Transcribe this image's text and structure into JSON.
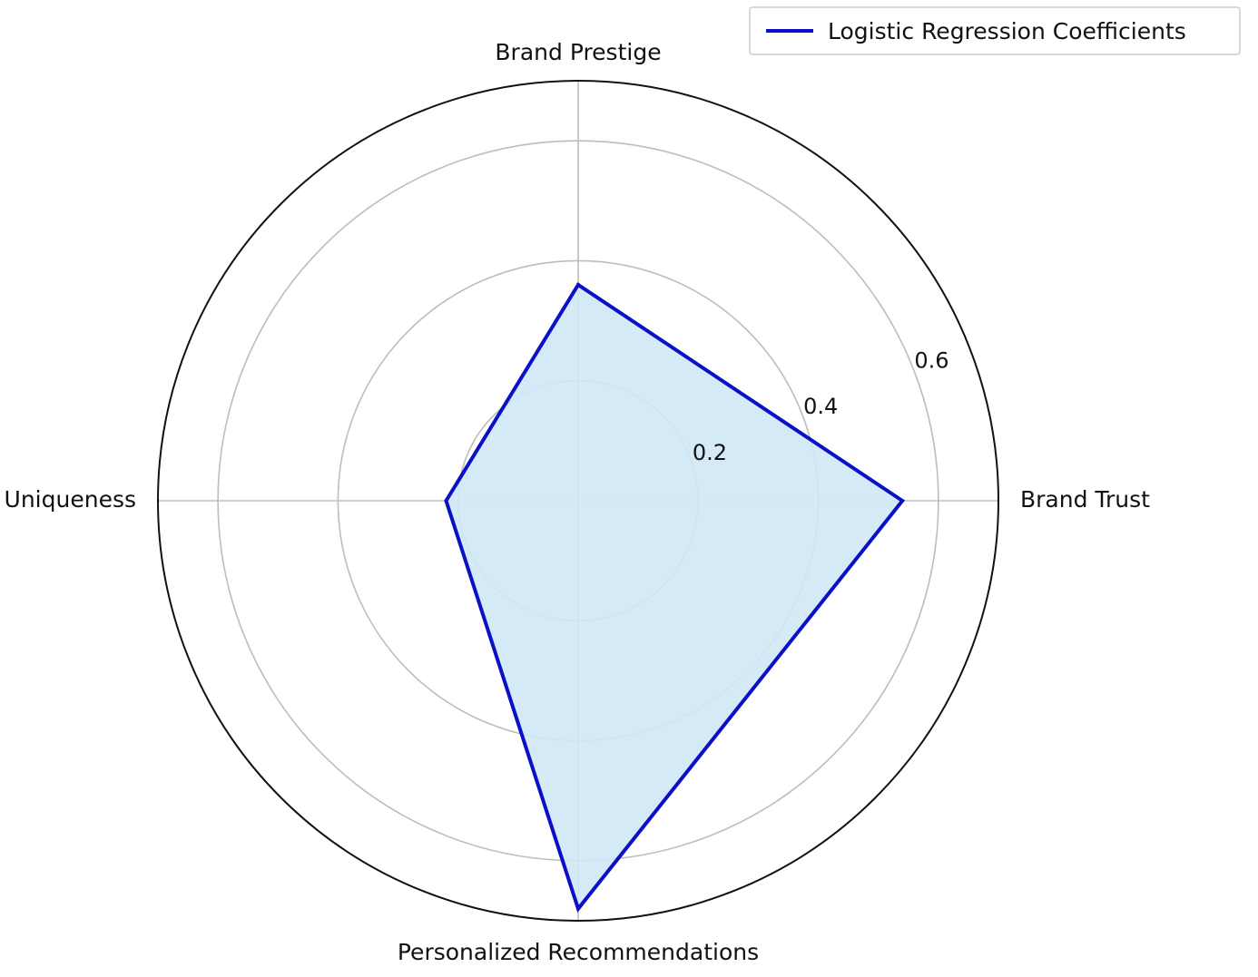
{
  "chart_data": {
    "type": "radar",
    "title": "",
    "categories": [
      "Brand Trust",
      "Brand Prestige",
      "Brand Uniqueness",
      "Personalized Recommendations"
    ],
    "series": [
      {
        "name": "Logistic Regression Coefficients",
        "values": [
          0.54,
          0.36,
          0.22,
          0.68
        ]
      }
    ],
    "radial_ticks": [
      0.2,
      0.4,
      0.6
    ],
    "radial_tick_labels": [
      "0.2",
      "0.4",
      "0.6"
    ],
    "rlim": [
      0,
      0.7
    ],
    "grid": true,
    "legend_position": "top-right",
    "colors": {
      "line": "#0a10c8",
      "fill": "#cfe8f5",
      "grid": "#bdbdbd",
      "outer_frame": "#111111"
    }
  }
}
